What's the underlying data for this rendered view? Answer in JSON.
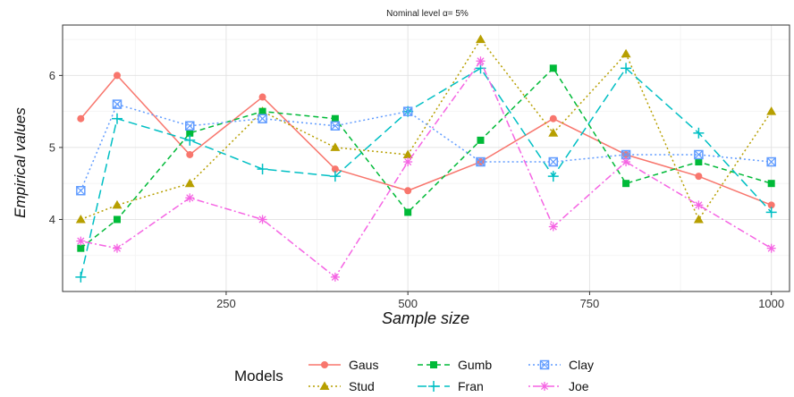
{
  "chart_data": {
    "type": "line",
    "title": "Nominal level α= 5%",
    "xlabel": "Sample size",
    "ylabel": "Empirical values",
    "x": [
      50,
      100,
      200,
      300,
      400,
      500,
      600,
      700,
      800,
      900,
      1000
    ],
    "xlim": [
      25,
      1025
    ],
    "ylim": [
      3.0,
      6.7
    ],
    "xticks": [
      250,
      500,
      750,
      1000
    ],
    "yticks": [
      4,
      5,
      6
    ],
    "grid": true,
    "legend_title": "Models",
    "legend_position": "bottom",
    "series": [
      {
        "name": "Gaus",
        "color": "#F8766D",
        "marker": "circle",
        "dash": "solid",
        "values": [
          5.4,
          6.0,
          4.9,
          5.7,
          4.7,
          4.4,
          4.8,
          5.4,
          4.9,
          4.6,
          4.2
        ]
      },
      {
        "name": "Stud",
        "color": "#B79F00",
        "marker": "triangle",
        "dash": "dotted",
        "values": [
          4.0,
          4.2,
          4.5,
          5.5,
          5.0,
          4.9,
          6.5,
          5.2,
          6.3,
          4.0,
          5.5
        ]
      },
      {
        "name": "Gumb",
        "color": "#00BA38",
        "marker": "square",
        "dash": "dashed",
        "values": [
          3.6,
          4.0,
          5.2,
          5.5,
          5.4,
          4.1,
          5.1,
          6.1,
          4.5,
          4.8,
          4.5
        ]
      },
      {
        "name": "Fran",
        "color": "#00BFC4",
        "marker": "plus",
        "dash": "longdash",
        "values": [
          3.2,
          5.4,
          5.1,
          4.7,
          4.6,
          5.5,
          6.1,
          4.6,
          6.1,
          5.2,
          4.1
        ]
      },
      {
        "name": "Clay",
        "color": "#619CFF",
        "marker": "squarecross",
        "dash": "dotted",
        "values": [
          4.4,
          5.6,
          5.3,
          5.4,
          5.3,
          5.5,
          4.8,
          4.8,
          4.9,
          4.9,
          4.8
        ]
      },
      {
        "name": "Joe",
        "color": "#F564E3",
        "marker": "asterisk",
        "dash": "dotdash",
        "values": [
          3.7,
          3.6,
          4.3,
          4.0,
          3.2,
          4.8,
          6.2,
          3.9,
          4.8,
          4.2,
          3.6
        ]
      }
    ]
  }
}
